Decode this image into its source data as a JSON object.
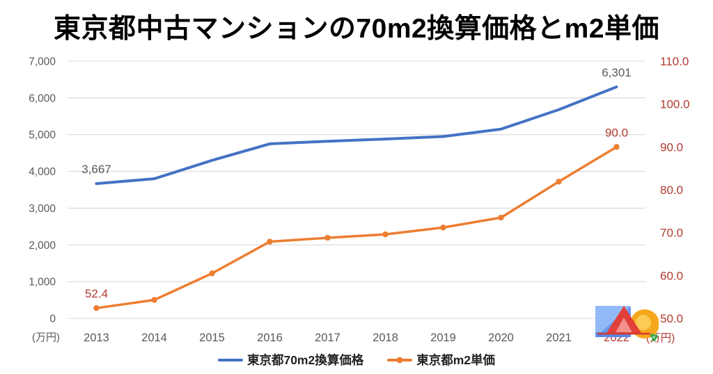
{
  "chart": {
    "title": "東京都中古マンションの70m2換算価格とm2単価"
  },
  "chart_data": {
    "type": "line",
    "title": "東京都中古マンションの70m2換算価格とm2単価",
    "categories": [
      "2013",
      "2014",
      "2015",
      "2016",
      "2017",
      "2018",
      "2019",
      "2020",
      "2021",
      "2022"
    ],
    "series": [
      {
        "name": "東京都70m2換算価格",
        "axis": "left",
        "color": "#4472C4",
        "width": 4,
        "markers": false,
        "values": [
          3667,
          3800,
          4300,
          4750,
          4820,
          4880,
          4950,
          5150,
          5680,
          6301
        ]
      },
      {
        "name": "東京都m2単価",
        "axis": "right",
        "color": "#ED7D31",
        "width": 3.5,
        "markers": true,
        "values": [
          52.4,
          54.3,
          60.5,
          67.9,
          68.8,
          69.6,
          71.2,
          73.5,
          81.9,
          90.0
        ]
      }
    ],
    "left_axis": {
      "min": 0,
      "max": 7000,
      "step": 1000,
      "unit": "(万円)"
    },
    "right_axis": {
      "min": 50,
      "max": 110,
      "step": 10,
      "unit": "(万円)"
    },
    "annotations": [
      {
        "series": 0,
        "index": 0,
        "text": "3,667"
      },
      {
        "series": 0,
        "index": 9,
        "text": "6,301"
      },
      {
        "series": 1,
        "index": 0,
        "text": "52.4"
      },
      {
        "series": 1,
        "index": 9,
        "text": "90.0"
      }
    ],
    "highlight_last_category": true,
    "grid": true,
    "legend_position": "bottom"
  },
  "colors": {
    "blue": "#4472C4",
    "orange": "#ED7D31",
    "red": "#B23A31",
    "gray": "#595959",
    "grid": "#D9D9D9"
  },
  "logo": {
    "icons": [
      "photo-square-icon",
      "mountain-icon",
      "sun-icon",
      "clover-icon"
    ]
  }
}
